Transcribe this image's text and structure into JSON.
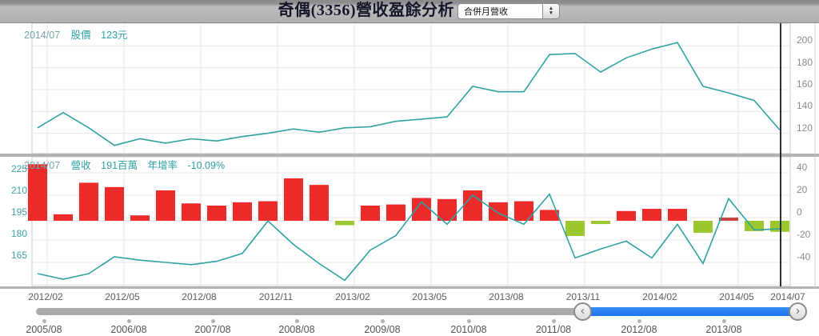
{
  "header": {
    "title": "奇偶(3356)營收盈餘分析",
    "dropdown_value": "合併月營收"
  },
  "price_panel": {
    "info_date": "2014/07",
    "info_label": "股價",
    "info_value": "123元"
  },
  "revenue_panel": {
    "info_date": "2014/07",
    "revenue_label": "營收",
    "revenue_value": "191百萬",
    "yoy_label": "年增率",
    "yoy_value": "-10.09%"
  },
  "colors": {
    "teal_line": "#2fa3a0",
    "bar_positive": "#ee2b2b",
    "bar_negative": "#9cc72e",
    "bar_special": "#c64444",
    "slider_blue": "#1f7df0",
    "cursor": "#2f2f2f"
  },
  "x_axis_labels": [
    "2012/02",
    "2012/05",
    "2012/08",
    "2012/11",
    "2013/02",
    "2013/05",
    "2013/08",
    "2013/11",
    "2014/02",
    "2014/05",
    "2014/07"
  ],
  "timeline": {
    "handle_prev_icon": "‹",
    "handle_next_icon": "›",
    "dates": [
      "2005/08",
      "2006/08",
      "2007/08",
      "2008/08",
      "2009/08",
      "2010/08",
      "2011/08",
      "2012/08",
      "2013/08"
    ]
  },
  "chart_data": [
    {
      "type": "line",
      "name": "monthly-stock-price",
      "title": "股價",
      "unit": "元",
      "axis_side": "right",
      "ylim": [
        100,
        210
      ],
      "yticks": [
        200,
        180,
        160,
        140,
        120
      ],
      "x": [
        "2012/02",
        "2012/03",
        "2012/04",
        "2012/05",
        "2012/06",
        "2012/07",
        "2012/08",
        "2012/09",
        "2012/10",
        "2012/11",
        "2012/12",
        "2013/01",
        "2013/02",
        "2013/03",
        "2013/04",
        "2013/05",
        "2013/06",
        "2013/07",
        "2013/08",
        "2013/09",
        "2013/10",
        "2013/11",
        "2013/12",
        "2014/01",
        "2014/02",
        "2014/03",
        "2014/04",
        "2014/05",
        "2014/06",
        "2014/07"
      ],
      "values": [
        125,
        139,
        125,
        109,
        115,
        111,
        115,
        113,
        117,
        120,
        124,
        121,
        125,
        126,
        131,
        133,
        135,
        163,
        158,
        158,
        192,
        193,
        176,
        189,
        197,
        203,
        163,
        157,
        150,
        123
      ]
    },
    {
      "type": "combo",
      "name": "monthly-revenue-yoy",
      "categories": [
        "2012/02",
        "2012/03",
        "2012/04",
        "2012/05",
        "2012/06",
        "2012/07",
        "2012/08",
        "2012/09",
        "2012/10",
        "2012/11",
        "2012/12",
        "2013/01",
        "2013/02",
        "2013/03",
        "2013/04",
        "2013/05",
        "2013/06",
        "2013/07",
        "2013/08",
        "2013/09",
        "2013/10",
        "2013/11",
        "2013/12",
        "2014/01",
        "2014/02",
        "2014/03",
        "2014/04",
        "2014/05",
        "2014/06",
        "2014/07"
      ],
      "series": [
        {
          "name": "營收年增率-bars",
          "type": "bar",
          "unit": "%",
          "values": [
            52,
            6,
            35,
            31,
            5,
            28,
            16,
            14,
            17,
            18,
            39,
            33,
            -4,
            14,
            15,
            21,
            20,
            28,
            17,
            18,
            10,
            -14,
            -3,
            9,
            11,
            11,
            -11,
            3,
            -9.5,
            -10.09
          ]
        },
        {
          "name": "年增率-line",
          "type": "line",
          "unit": "%",
          "values": [
            -50,
            -55,
            -50,
            -35,
            -38,
            -40,
            -42,
            -39,
            -32,
            -3,
            -24,
            -41,
            -56,
            -29,
            -16,
            14,
            -6,
            20,
            4,
            -6,
            21,
            -36,
            -28,
            -21,
            -36,
            -6,
            -41,
            17,
            -11,
            -10.09
          ]
        }
      ],
      "yticks_left": [
        225,
        210,
        195,
        180,
        165
      ],
      "yticks_right": [
        40,
        20,
        0,
        -20,
        -40
      ],
      "ylim_right": [
        -62,
        54
      ],
      "special_bar_colors": {
        "27": "#c64444"
      }
    }
  ]
}
